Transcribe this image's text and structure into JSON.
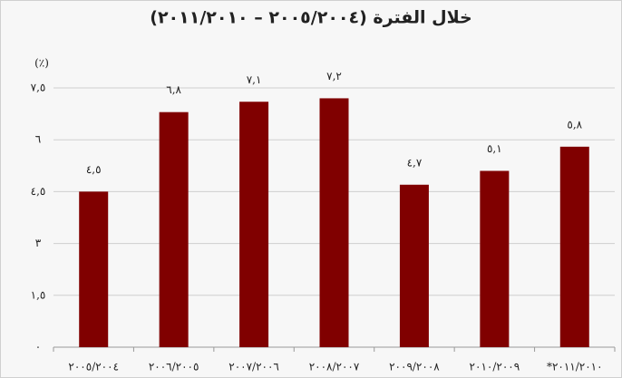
{
  "chart_data": {
    "type": "bar",
    "title": "خلال الفترة (٢٠٠٥/٢٠٠٤ – ٢٠١١/٢٠١٠)",
    "y_label": "(٪)",
    "categories": [
      "٢٠٠٥/٢٠٠٤",
      "٢٠٠٦/٢٠٠٥",
      "٢٠٠٧/٢٠٠٦",
      "٢٠٠٨/٢٠٠٧",
      "٢٠٠٩/٢٠٠٨",
      "٢٠١٠/٢٠٠٩",
      "*٢٠١١/٢٠١٠"
    ],
    "values": [
      4.5,
      6.8,
      7.1,
      7.2,
      4.7,
      5.1,
      5.8
    ],
    "value_labels": [
      "٤,٥",
      "٦,٨",
      "٧,١",
      "٧,٢",
      "٤,٧",
      "٥,١",
      "٥,٨"
    ],
    "color": "#800000",
    "ylim": [
      0,
      7.5
    ],
    "yticks": [
      {
        "value": 0,
        "label": "٠"
      },
      {
        "value": 1.5,
        "label": "١,٥"
      },
      {
        "value": 3,
        "label": "٣"
      },
      {
        "value": 4.5,
        "label": "٤,٥"
      },
      {
        "value": 6,
        "label": "٦"
      },
      {
        "value": 7.5,
        "label": "٧,٥"
      }
    ],
    "grid": true
  }
}
